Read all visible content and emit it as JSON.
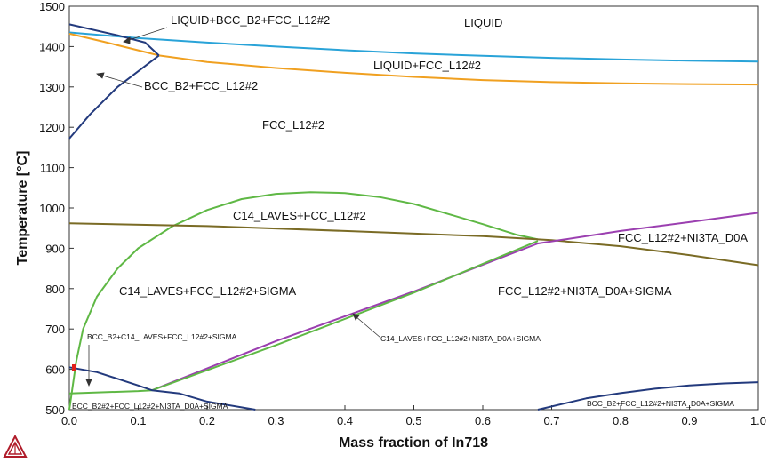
{
  "chart_data": {
    "type": "line",
    "title": "",
    "xlabel": "Mass fraction of In718",
    "ylabel": "Temperature [°C]",
    "xlim": [
      0.0,
      1.0
    ],
    "ylim": [
      500,
      1500
    ],
    "grid": false,
    "x_ticks": [
      "0.0",
      "0.1",
      "0.2",
      "0.3",
      "0.4",
      "0.5",
      "0.6",
      "0.7",
      "0.8",
      "0.9",
      "1.0"
    ],
    "y_ticks": [
      "500",
      "600",
      "700",
      "800",
      "900",
      "1000",
      "1100",
      "1200",
      "1300",
      "1400",
      "1500"
    ],
    "series": [
      {
        "name": "liquidus",
        "color": "#29a3d8",
        "x": [
          0.0,
          0.1,
          0.2,
          0.3,
          0.4,
          0.5,
          0.6,
          0.7,
          0.8,
          0.9,
          1.0
        ],
        "y": [
          1435,
          1421,
          1410,
          1400,
          1391,
          1383,
          1377,
          1372,
          1368,
          1365,
          1363
        ]
      },
      {
        "name": "solidus",
        "color": "#f0a020",
        "x": [
          0.0,
          0.05,
          0.13,
          0.2,
          0.3,
          0.4,
          0.5,
          0.6,
          0.7,
          0.8,
          0.9,
          1.0
        ],
        "y": [
          1432,
          1412,
          1378,
          1362,
          1347,
          1335,
          1325,
          1317,
          1312,
          1309,
          1307,
          1306
        ]
      },
      {
        "name": "BCC_B2 upper boundary",
        "color": "#233a7d",
        "x": [
          0.0,
          0.07,
          0.11,
          0.13
        ],
        "y": [
          1455,
          1428,
          1410,
          1378
        ]
      },
      {
        "name": "BCC_B2 solvus",
        "color": "#233a7d",
        "x": [
          0.0,
          0.03,
          0.07,
          0.13
        ],
        "y": [
          1172,
          1232,
          1300,
          1378
        ]
      },
      {
        "name": "C14_LAVES solvus",
        "color": "#5fb845",
        "x": [
          0.0,
          0.01,
          0.02,
          0.04,
          0.07,
          0.1,
          0.15,
          0.2,
          0.25,
          0.3,
          0.35,
          0.4,
          0.45,
          0.5,
          0.55,
          0.6,
          0.65,
          0.68
        ],
        "y": [
          500,
          620,
          700,
          780,
          850,
          900,
          955,
          995,
          1022,
          1035,
          1039,
          1037,
          1027,
          1010,
          985,
          960,
          933,
          922
        ]
      },
      {
        "name": "NI3TA_D0A solvus",
        "color": "#7a6b25",
        "x": [
          0.0,
          0.2,
          0.4,
          0.6,
          0.7,
          0.8,
          0.9,
          1.0
        ],
        "y": [
          962,
          955,
          943,
          930,
          920,
          905,
          883,
          858
        ]
      },
      {
        "name": "SIGMA solvus",
        "color": "#9b3fb0",
        "x": [
          0.12,
          0.3,
          0.5,
          0.68,
          0.8,
          0.9,
          1.0
        ],
        "y": [
          548,
          670,
          793,
          912,
          943,
          965,
          988
        ]
      },
      {
        "name": "LAVES/NI3TA boundary",
        "color": "#5fb845",
        "x": [
          0.0,
          0.1,
          0.12,
          0.3,
          0.5,
          0.68
        ],
        "y": [
          540,
          546,
          548,
          660,
          790,
          918
        ]
      },
      {
        "name": "BCC_B2 low-T left",
        "color": "#233a7d",
        "x": [
          0.0,
          0.04,
          0.1,
          0.12,
          0.16,
          0.2,
          0.27
        ],
        "y": [
          605,
          593,
          560,
          548,
          540,
          520,
          500
        ]
      },
      {
        "name": "BCC_B2 low-T right",
        "color": "#233a7d",
        "x": [
          0.68,
          0.75,
          0.8,
          0.85,
          0.9,
          0.95,
          1.0
        ],
        "y": [
          500,
          528,
          541,
          552,
          560,
          565,
          568
        ]
      }
    ],
    "labels": [
      {
        "text": "LIQUID",
        "x": 0.6,
        "y": 1470
      },
      {
        "text": "LIQUID+BCC_B2+FCC_L12#2",
        "x": 0.24,
        "y": 1472
      },
      {
        "text": "LIQUID+FCC_L12#2",
        "x": 0.52,
        "y": 1360
      },
      {
        "text": "BCC_B2+FCC_L12#2",
        "x": 0.21,
        "y": 1310
      },
      {
        "text": "FCC_L12#2",
        "x": 0.3,
        "y": 1200
      },
      {
        "text": "C14_LAVES+FCC_L12#2",
        "x": 0.29,
        "y": 985
      },
      {
        "text": "FCC_L12#2+NI3TA_D0A",
        "x": 0.87,
        "y": 925
      },
      {
        "text": "C14_LAVES+FCC_L12#2+SIGMA",
        "x": 0.18,
        "y": 810
      },
      {
        "text": "FCC_L12#2+NI3TA_D0A+SIGMA",
        "x": 0.72,
        "y": 810
      },
      {
        "text": "BCC_B2+C14_LAVES+FCC_L12#2+SIGMA",
        "x": 0.135,
        "y": 690
      },
      {
        "text": "C14_LAVES+FCC_L12#2+NI3TA_D0A+SIGMA",
        "x": 0.53,
        "y": 685
      },
      {
        "text": "BCC_B2#2+FCC_L12#2+NI3TA_D0A+SIGMA",
        "x": 0.1,
        "y": 505
      },
      {
        "text": "BCC_B2+FCC_L12#2+NI3TA_D0A+SIGMA",
        "x": 0.84,
        "y": 510
      }
    ]
  }
}
